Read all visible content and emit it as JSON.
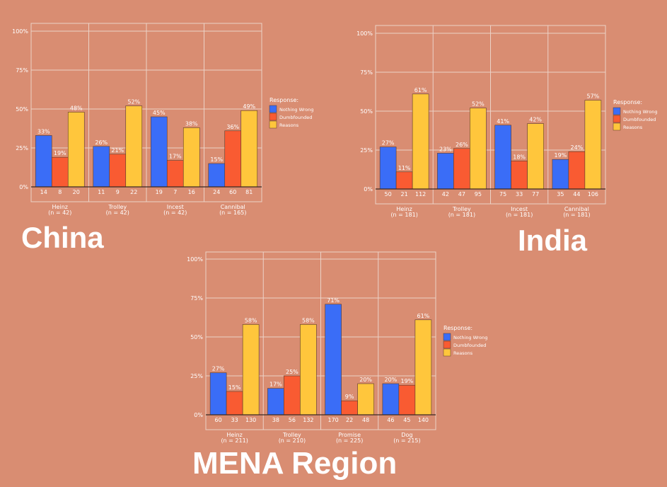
{
  "background": "#d98d72",
  "colors": {
    "Nothing Wrong": "#3a6df7",
    "Dumbfounded": "#f95b32",
    "Reasons": "#ffc63c"
  },
  "labels": {
    "china": "China",
    "india": "India",
    "mena": "MENA Region"
  },
  "chart_data": [
    {
      "id": "china",
      "type": "bar",
      "legend_title": "Response:",
      "legend_position": "right",
      "ylim": [
        0,
        1
      ],
      "yticks": [
        "0%",
        "25%",
        "50%",
        "75%",
        "100%"
      ],
      "grid": true,
      "categories": [
        {
          "name": "Heinz",
          "n": "(n = 42)"
        },
        {
          "name": "Trolley",
          "n": "(n = 42)"
        },
        {
          "name": "Incest",
          "n": "(n = 42)"
        },
        {
          "name": "Cannibal",
          "n": "(n = 165)"
        }
      ],
      "series": [
        {
          "name": "Nothing Wrong",
          "values": [
            0.33,
            0.26,
            0.45,
            0.15
          ],
          "labels": [
            "33%",
            "26%",
            "45%",
            "15%"
          ],
          "counts": [
            "14",
            "11",
            "19",
            "24"
          ]
        },
        {
          "name": "Dumbfounded",
          "values": [
            0.19,
            0.21,
            0.17,
            0.36
          ],
          "labels": [
            "19%",
            "21%",
            "17%",
            "36%"
          ],
          "counts": [
            "8",
            "9",
            "7",
            "60"
          ]
        },
        {
          "name": "Reasons",
          "values": [
            0.48,
            0.52,
            0.38,
            0.49
          ],
          "labels": [
            "48%",
            "52%",
            "38%",
            "49%"
          ],
          "counts": [
            "20",
            "22",
            "16",
            "81"
          ]
        }
      ]
    },
    {
      "id": "india",
      "type": "bar",
      "legend_title": "Response:",
      "legend_position": "right",
      "ylim": [
        0,
        1
      ],
      "yticks": [
        "0%",
        "25%",
        "50%",
        "75%",
        "100%"
      ],
      "grid": true,
      "categories": [
        {
          "name": "Heinz",
          "n": "(n = 181)"
        },
        {
          "name": "Trolley",
          "n": "(n = 181)"
        },
        {
          "name": "Incest",
          "n": "(n = 181)"
        },
        {
          "name": "Cannibal",
          "n": "(n = 181)"
        }
      ],
      "series": [
        {
          "name": "Nothing Wrong",
          "values": [
            0.27,
            0.23,
            0.41,
            0.19
          ],
          "labels": [
            "27%",
            "23%",
            "41%",
            "19%"
          ],
          "counts": [
            "50",
            "42",
            "75",
            "35"
          ]
        },
        {
          "name": "Dumbfounded",
          "values": [
            0.11,
            0.26,
            0.18,
            0.24
          ],
          "labels": [
            "11%",
            "26%",
            "18%",
            "24%"
          ],
          "counts": [
            "21",
            "47",
            "33",
            "44"
          ]
        },
        {
          "name": "Reasons",
          "values": [
            0.61,
            0.52,
            0.42,
            0.57
          ],
          "labels": [
            "61%",
            "52%",
            "42%",
            "57%"
          ],
          "counts": [
            "112",
            "95",
            "77",
            "106"
          ]
        }
      ]
    },
    {
      "id": "mena",
      "type": "bar",
      "legend_title": "Response:",
      "legend_position": "right",
      "ylim": [
        0,
        1
      ],
      "yticks": [
        "0%",
        "25%",
        "50%",
        "75%",
        "100%"
      ],
      "grid": true,
      "categories": [
        {
          "name": "Heinz",
          "n": "(n = 211)"
        },
        {
          "name": "Trolley",
          "n": "(n = 210)"
        },
        {
          "name": "Promise",
          "n": "(n = 225)"
        },
        {
          "name": "Dog",
          "n": "(n = 215)"
        }
      ],
      "series": [
        {
          "name": "Nothing Wrong",
          "values": [
            0.27,
            0.17,
            0.71,
            0.2
          ],
          "labels": [
            "27%",
            "17%",
            "71%",
            "20%"
          ],
          "counts": [
            "60",
            "38",
            "170",
            "46"
          ]
        },
        {
          "name": "Dumbfounded",
          "values": [
            0.15,
            0.25,
            0.09,
            0.19
          ],
          "labels": [
            "15%",
            "25%",
            "9%",
            "19%"
          ],
          "counts": [
            "33",
            "56",
            "22",
            "45"
          ]
        },
        {
          "name": "Reasons",
          "values": [
            0.58,
            0.58,
            0.2,
            0.61
          ],
          "labels": [
            "58%",
            "58%",
            "20%",
            "61%"
          ],
          "counts": [
            "130",
            "132",
            "48",
            "140"
          ]
        }
      ]
    }
  ]
}
